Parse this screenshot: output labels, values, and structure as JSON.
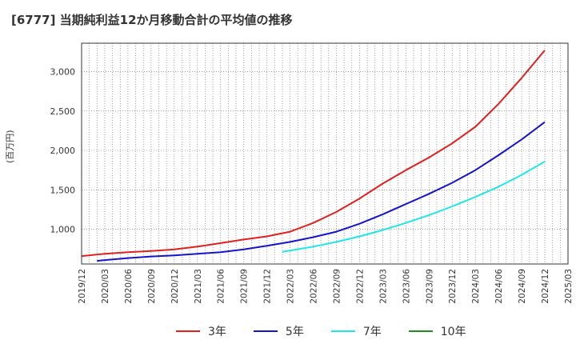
{
  "chart_data": {
    "type": "line",
    "title": "[6777]  当期純利益12か月移動合計の平均値の推移",
    "ylabel": "(百万円)",
    "xlabel": "",
    "ylim": [
      560,
      3360
    ],
    "y_ticks": [
      1000,
      1500,
      2000,
      2500,
      3000
    ],
    "y_tick_labels": [
      "1,000",
      "1,500",
      "2,000",
      "2,500",
      "3,000"
    ],
    "x_tick_labels": [
      "2019/12",
      "2020/03",
      "2020/06",
      "2020/09",
      "2020/12",
      "2021/03",
      "2021/06",
      "2021/09",
      "2021/12",
      "2022/03",
      "2022/06",
      "2022/09",
      "2022/12",
      "2023/03",
      "2023/06",
      "2023/09",
      "2023/12",
      "2024/03",
      "2024/06",
      "2024/09",
      "2024/12",
      "2025/03"
    ],
    "grid": true,
    "legend_position": "bottom",
    "series": [
      {
        "name": "3年",
        "color": "#e02020",
        "x": [
          "2019/12",
          "2020/03",
          "2020/06",
          "2020/09",
          "2020/12",
          "2021/03",
          "2021/06",
          "2021/09",
          "2021/12",
          "2022/03",
          "2022/06",
          "2022/09",
          "2022/12",
          "2023/03",
          "2023/06",
          "2023/09",
          "2023/12",
          "2024/03",
          "2024/06",
          "2024/09",
          "2024/12"
        ],
        "values": [
          660,
          690,
          710,
          725,
          745,
          780,
          825,
          870,
          910,
          970,
          1080,
          1220,
          1390,
          1580,
          1750,
          1910,
          2090,
          2300,
          2590,
          2920,
          3270
        ]
      },
      {
        "name": "5年",
        "color": "#1414c8",
        "x": [
          "2020/02",
          "2020/03",
          "2020/06",
          "2020/09",
          "2020/12",
          "2021/03",
          "2021/06",
          "2021/09",
          "2021/12",
          "2022/03",
          "2022/06",
          "2022/09",
          "2022/12",
          "2023/03",
          "2023/06",
          "2023/09",
          "2023/12",
          "2024/03",
          "2024/06",
          "2024/09",
          "2024/12"
        ],
        "values": [
          600,
          610,
          635,
          655,
          670,
          690,
          710,
          745,
          790,
          840,
          900,
          970,
          1070,
          1190,
          1320,
          1450,
          1590,
          1750,
          1940,
          2140,
          2360
        ]
      },
      {
        "name": "7年",
        "color": "#22e5e5",
        "x": [
          "2022/02",
          "2022/03",
          "2022/06",
          "2022/09",
          "2022/12",
          "2023/03",
          "2023/06",
          "2023/09",
          "2023/12",
          "2024/03",
          "2024/06",
          "2024/09",
          "2024/12"
        ],
        "values": [
          715,
          730,
          780,
          840,
          910,
          990,
          1080,
          1180,
          1290,
          1410,
          1540,
          1690,
          1860
        ]
      },
      {
        "name": "10年",
        "color": "#1f8c1f",
        "x": [],
        "values": []
      }
    ]
  }
}
